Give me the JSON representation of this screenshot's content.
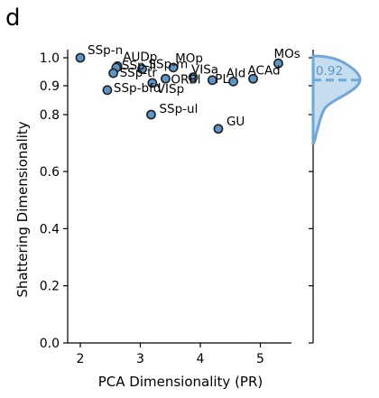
{
  "chart_data": {
    "type": "scatter",
    "panel_letter": "d",
    "xlabel": "PCA Dimensionality (PR)",
    "ylabel": "Shattering Dimensionality",
    "xlim": [
      1.8,
      5.5
    ],
    "ylim": [
      0.0,
      1.0
    ],
    "xticks": [
      2,
      3,
      4,
      5
    ],
    "yticks": [
      0.0,
      0.2,
      0.4,
      0.6,
      0.8,
      0.9,
      1.0
    ],
    "ytick_labels": [
      "0.0",
      "0.2",
      "0.4",
      "0.6",
      "0.8",
      "0.9",
      "1.0"
    ],
    "y_scale": "nonlinear (expanded near 1.0)",
    "points": [
      {
        "label": "SSp-n",
        "x": 2.0,
        "y": 1.0
      },
      {
        "label": "AUDp",
        "x": 2.62,
        "y": 0.97
      },
      {
        "label": "SSp-ll",
        "x": 2.6,
        "y": 0.965
      },
      {
        "label": "SSp-m",
        "x": 3.03,
        "y": 0.96
      },
      {
        "label": "MOp",
        "x": 3.55,
        "y": 0.965
      },
      {
        "label": "SSp-tr",
        "x": 2.55,
        "y": 0.945
      },
      {
        "label": "VISa",
        "x": 3.88,
        "y": 0.93
      },
      {
        "label": "ORBl",
        "x": 3.42,
        "y": 0.925
      },
      {
        "label": "PL",
        "x": 4.2,
        "y": 0.92
      },
      {
        "label": "AId",
        "x": 4.55,
        "y": 0.915
      },
      {
        "label": "ACAd",
        "x": 4.88,
        "y": 0.925
      },
      {
        "label": "MOs",
        "x": 5.3,
        "y": 0.98
      },
      {
        "label": "VISp",
        "x": 3.2,
        "y": 0.91
      },
      {
        "label": "SSp-bfd",
        "x": 2.45,
        "y": 0.885
      },
      {
        "label": "SSp-ul",
        "x": 3.18,
        "y": 0.8
      },
      {
        "label": "GU",
        "x": 4.3,
        "y": 0.75
      }
    ],
    "marginal_density": {
      "median_value": 0.92,
      "median_label": "0.92"
    },
    "colors": {
      "point_fill": "#5a96c8",
      "point_edge": "#222222",
      "density_fill": "#c6dcef",
      "density_line": "#6fa8d8",
      "median_text": "#5a96c8"
    }
  }
}
